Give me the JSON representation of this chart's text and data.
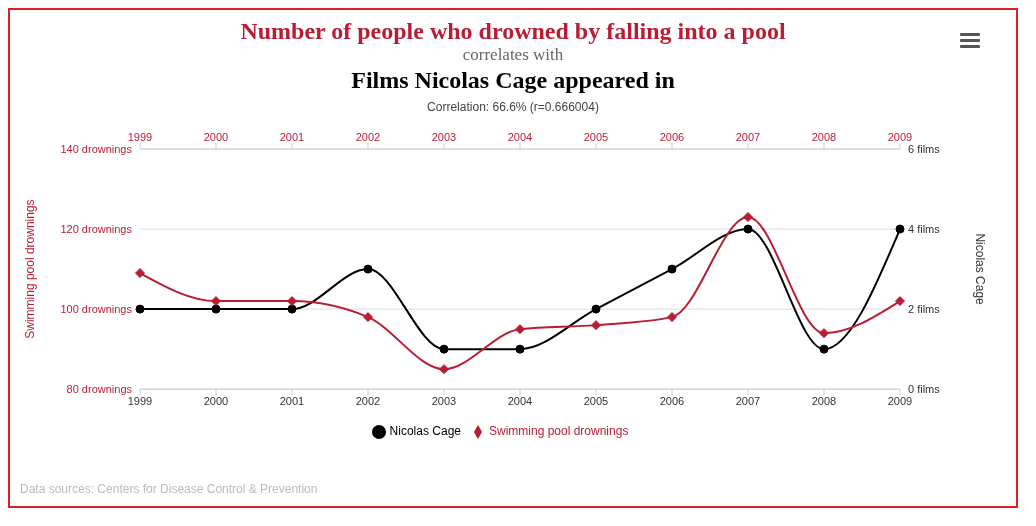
{
  "chart_data": {
    "type": "line",
    "title": "Number of people who drowned by falling into a pool",
    "subtitle": "correlates with",
    "annotations": [
      "Films Nicolas Cage appeared in",
      "Correlation: 66.6% (r=0.666004)",
      "Data sources: Centers for Disease Control & Prevention"
    ],
    "categories": [
      "1999",
      "2000",
      "2001",
      "2002",
      "2003",
      "2004",
      "2005",
      "2006",
      "2007",
      "2008",
      "2009"
    ],
    "series": [
      {
        "name": "Nicolas Cage",
        "color": "#000000",
        "axis": "y2",
        "marker": "circle",
        "values": [
          2,
          2,
          2,
          3,
          1,
          1,
          2,
          3,
          4,
          1,
          4
        ]
      },
      {
        "name": "Swimming pool drownings",
        "color": "#b91d35",
        "marker": "diamond",
        "values": [
          109,
          102,
          102,
          98,
          85,
          95,
          96,
          98,
          123,
          94,
          102
        ]
      }
    ],
    "ylabel": "Swimming pool drownings",
    "y2label": "Nicolas Cage",
    "ylim": [
      80,
      140
    ],
    "yticks": [
      {
        "value": 80,
        "label": "80 drownings"
      },
      {
        "value": 100,
        "label": "100 drownings"
      },
      {
        "value": 120,
        "label": "120 drownings"
      },
      {
        "value": 140,
        "label": "140 drownings"
      }
    ],
    "y2lim": [
      0,
      6
    ],
    "y2ticks": [
      {
        "value": 0,
        "label": "0 films"
      },
      {
        "value": 2,
        "label": "2 films"
      },
      {
        "value": 4,
        "label": "4 films"
      },
      {
        "value": 6,
        "label": "6 films"
      }
    ],
    "grid": "y",
    "legend": "bottom"
  }
}
